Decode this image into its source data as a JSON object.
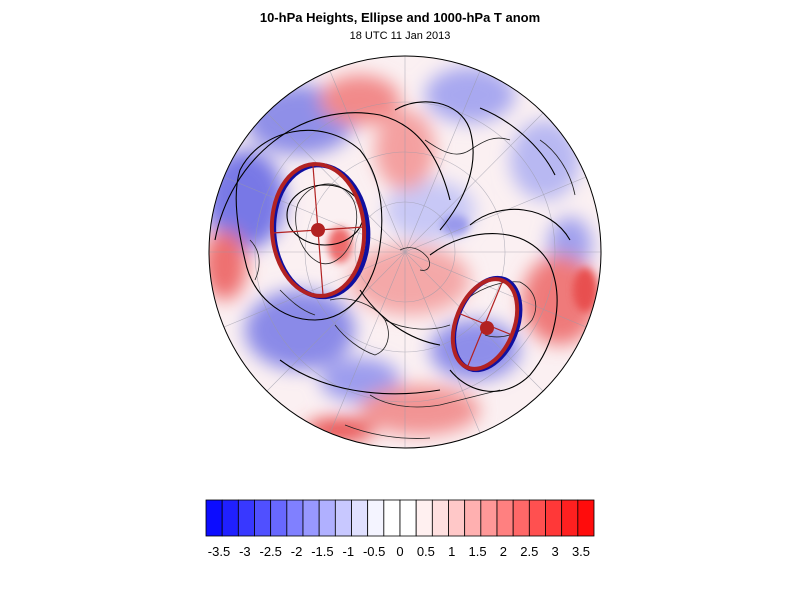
{
  "figure": {
    "title": "10-hPa Heights, Ellipse and 1000-hPa T anom",
    "subtitle": "18 UTC 11 Jan 2013"
  },
  "colors": {
    "ellipse_fit": "#b22222",
    "ellipse_obs": "#1010a0",
    "contour": "#000000",
    "coast": "#222222",
    "grid": "#9a9aa8"
  },
  "colorbar": {
    "colors": [
      "#0c0cff",
      "#2020ff",
      "#3838ff",
      "#5050ff",
      "#6868ff",
      "#8080ff",
      "#9898ff",
      "#b0b0ff",
      "#c8c8ff",
      "#e0e0ff",
      "#f4f4ff",
      "#ffffff",
      "#ffffff",
      "#fff0f0",
      "#ffe0e0",
      "#ffc8c8",
      "#ffb0b0",
      "#ff9898",
      "#ff8080",
      "#ff6868",
      "#ff5050",
      "#ff3838",
      "#ff2020",
      "#ff0c0c"
    ],
    "labels": [
      "-3.5",
      "-3",
      "-2.5",
      "-2",
      "-1.5",
      "-1",
      "-0.5",
      "0",
      "0.5",
      "1",
      "1.5",
      "2",
      "2.5",
      "3",
      "3.5"
    ]
  }
}
